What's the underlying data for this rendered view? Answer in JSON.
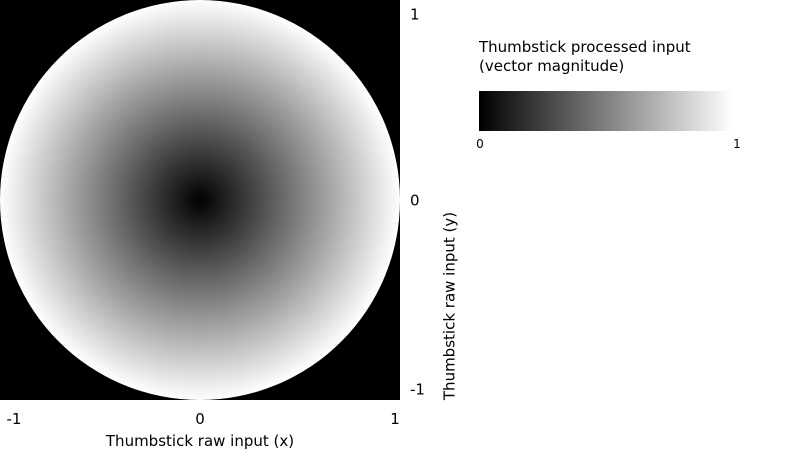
{
  "chart_data": {
    "type": "heatmap",
    "description_of_values": "vector magnitude of raw stick input inside unit circle",
    "xlabel": "Thumbstick raw input (x)",
    "ylabel": "Thumbstick raw input (y)",
    "xlim": [
      -1,
      1
    ],
    "ylim": [
      -1,
      1
    ],
    "x_ticks": [
      "-1",
      "0",
      "1"
    ],
    "y_ticks": [
      "1",
      "0",
      "-1"
    ],
    "value_range": [
      0,
      1
    ],
    "colormap": [
      "#000000",
      "#ffffff"
    ],
    "outside_region_color": "#000000",
    "legend": {
      "title_line1": "Thumbstick processed input",
      "title_line2": "(vector magnitude)",
      "min_label": "0",
      "max_label": "1",
      "placement": "top-right"
    }
  }
}
